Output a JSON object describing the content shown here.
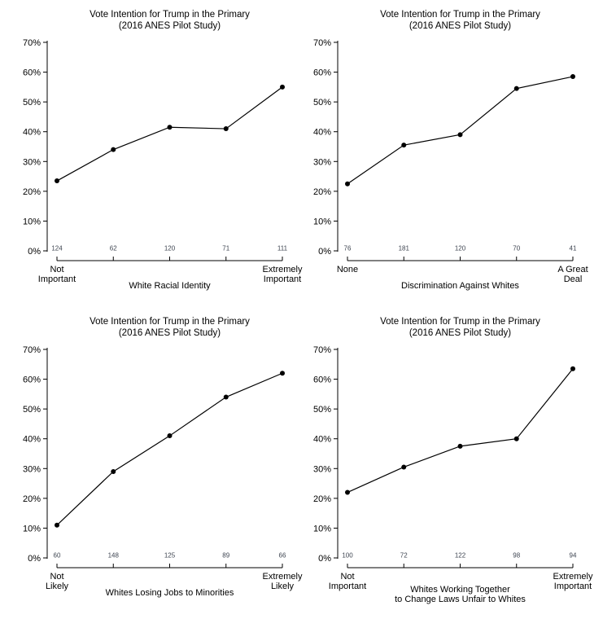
{
  "figure": {
    "background_color": "#ffffff",
    "axis_color": "#000000",
    "text_color": "#000000",
    "sample_size_color": "#3d4450"
  },
  "chart_data": [
    {
      "type": "line",
      "title": "Vote Intention for Trump in the Primary",
      "subtitle": "(2016 ANES Pilot Study)",
      "xlabel_lines": [
        "White Racial Identity"
      ],
      "x_first_tick_label_lines": [
        "Not",
        "Important"
      ],
      "x_last_tick_label_lines": [
        "Extremely",
        "Important"
      ],
      "x_categories": [
        "1",
        "2",
        "3",
        "4",
        "5"
      ],
      "values_pct": [
        23.5,
        34,
        41.5,
        41,
        55
      ],
      "sample_sizes": [
        "124",
        "62",
        "120",
        "71",
        "111"
      ],
      "y_tick_labels": [
        "0%",
        "10%",
        "20%",
        "30%",
        "40%",
        "50%",
        "60%",
        "70%"
      ],
      "ylim": [
        0,
        70
      ],
      "grid": false,
      "legend": false,
      "line_color": "#000000",
      "point_color": "#000000"
    },
    {
      "type": "line",
      "title": "Vote Intention for Trump in the Primary",
      "subtitle": "(2016 ANES Pilot Study)",
      "xlabel_lines": [
        "Discrimination Against Whites"
      ],
      "x_first_tick_label_lines": [
        "None"
      ],
      "x_last_tick_label_lines": [
        "A Great",
        "Deal"
      ],
      "x_categories": [
        "1",
        "2",
        "3",
        "4",
        "5"
      ],
      "values_pct": [
        22.5,
        35.5,
        39,
        54.5,
        58.5
      ],
      "sample_sizes": [
        "76",
        "181",
        "120",
        "70",
        "41"
      ],
      "y_tick_labels": [
        "0%",
        "10%",
        "20%",
        "30%",
        "40%",
        "50%",
        "60%",
        "70%"
      ],
      "ylim": [
        0,
        70
      ],
      "grid": false,
      "legend": false,
      "line_color": "#000000",
      "point_color": "#000000"
    },
    {
      "type": "line",
      "title": "Vote Intention for Trump in the Primary",
      "subtitle": "(2016 ANES Pilot Study)",
      "xlabel_lines": [
        "Whites Losing Jobs to Minorities"
      ],
      "x_first_tick_label_lines": [
        "Not",
        "Likely"
      ],
      "x_last_tick_label_lines": [
        "Extremely",
        "Likely"
      ],
      "x_categories": [
        "1",
        "2",
        "3",
        "4",
        "5"
      ],
      "values_pct": [
        11,
        29,
        41,
        54,
        62
      ],
      "sample_sizes": [
        "60",
        "148",
        "125",
        "89",
        "66"
      ],
      "y_tick_labels": [
        "0%",
        "10%",
        "20%",
        "30%",
        "40%",
        "50%",
        "60%",
        "70%"
      ],
      "ylim": [
        0,
        70
      ],
      "grid": false,
      "legend": false,
      "line_color": "#000000",
      "point_color": "#000000"
    },
    {
      "type": "line",
      "title": "Vote Intention for Trump in the Primary",
      "subtitle": "(2016 ANES Pilot Study)",
      "xlabel_lines": [
        "Whites Working Together",
        "to Change Laws Unfair to Whites"
      ],
      "x_first_tick_label_lines": [
        "Not",
        "Important"
      ],
      "x_last_tick_label_lines": [
        "Extremely",
        "Important"
      ],
      "x_categories": [
        "1",
        "2",
        "3",
        "4",
        "5"
      ],
      "values_pct": [
        22,
        30.5,
        37.5,
        40,
        63.5
      ],
      "sample_sizes": [
        "100",
        "72",
        "122",
        "98",
        "94"
      ],
      "y_tick_labels": [
        "0%",
        "10%",
        "20%",
        "30%",
        "40%",
        "50%",
        "60%",
        "70%"
      ],
      "ylim": [
        0,
        70
      ],
      "grid": false,
      "legend": false,
      "line_color": "#000000",
      "point_color": "#000000"
    }
  ]
}
